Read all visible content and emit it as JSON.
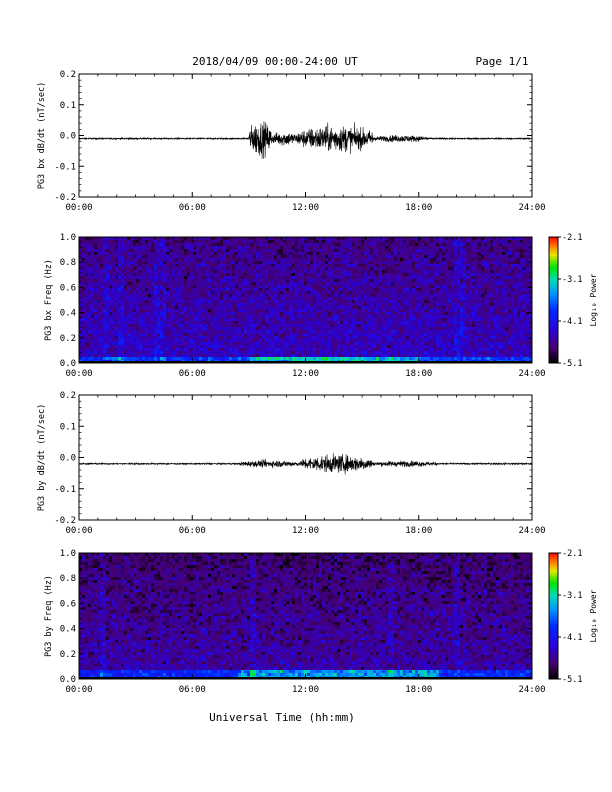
{
  "header": {
    "title": "2018/04/09  00:00-24:00 UT",
    "page": "Page 1/1"
  },
  "footer": {
    "xlabel": "Universal Time (hh:mm)"
  },
  "colorbar": {
    "label": "Log₁₀ Power",
    "ticks": [
      "-2.1",
      "-3.1",
      "-4.1",
      "-5.1"
    ],
    "range": [
      -5.1,
      -2.1
    ],
    "colormap": "rainbow-dark-to-red"
  },
  "chart_data": [
    {
      "id": "bx-ts",
      "type": "line",
      "title": "",
      "ylabel": "PG3 bx dB/dt (nT/sec)",
      "xlabel": "",
      "xlim": [
        0,
        24
      ],
      "ylim": [
        -0.2,
        0.2
      ],
      "x_ticks": [
        "00:00",
        "06:00",
        "12:00",
        "18:00",
        "24:00"
      ],
      "y_ticks": [
        "0.2",
        "0.1",
        "0.0",
        "-0.1",
        "-0.2"
      ],
      "baseline": -0.01,
      "activity": [
        {
          "start_hr": 9.0,
          "end_hr": 10.2,
          "amplitude": 0.06
        },
        {
          "start_hr": 10.2,
          "end_hr": 11.6,
          "amplitude": 0.025
        },
        {
          "start_hr": 11.6,
          "end_hr": 15.6,
          "amplitude": 0.045
        },
        {
          "start_hr": 15.6,
          "end_hr": 18.5,
          "amplitude": 0.012
        }
      ]
    },
    {
      "id": "bx-spec",
      "type": "heatmap",
      "title": "",
      "ylabel": "PG3 bx Freq (Hz)",
      "xlim": [
        0,
        24
      ],
      "ylim": [
        0.0,
        1.0
      ],
      "x_ticks": [
        "00:00",
        "06:00",
        "12:00",
        "18:00",
        "24:00"
      ],
      "y_ticks": [
        "1.0",
        "0.8",
        "0.6",
        "0.4",
        "0.2",
        "0.0"
      ],
      "z_range": [
        -5.1,
        -2.1
      ],
      "background_log_power": -4.4,
      "low_freq_band": {
        "max_hz": 0.05,
        "peak_log_power": -3.0,
        "peak_hr_range": [
          11.5,
          15.0
        ]
      },
      "vertical_streaks_hr": [
        1.5,
        2.3,
        4.2,
        4.5,
        20.0,
        20.4
      ]
    },
    {
      "id": "by-ts",
      "type": "line",
      "title": "",
      "ylabel": "PG3 by dB/dt (nT/sec)",
      "xlabel": "",
      "xlim": [
        0,
        24
      ],
      "ylim": [
        -0.2,
        0.2
      ],
      "x_ticks": [
        "00:00",
        "06:00",
        "12:00",
        "18:00",
        "24:00"
      ],
      "y_ticks": [
        "0.2",
        "0.1",
        "0.0",
        "-0.1",
        "-0.2"
      ],
      "baseline": -0.02,
      "activity": [
        {
          "start_hr": 8.5,
          "end_hr": 11.8,
          "amplitude": 0.012
        },
        {
          "start_hr": 11.8,
          "end_hr": 15.5,
          "amplitude": 0.03
        },
        {
          "start_hr": 15.5,
          "end_hr": 19.0,
          "amplitude": 0.01
        }
      ]
    },
    {
      "id": "by-spec",
      "type": "heatmap",
      "title": "",
      "ylabel": "PG3 by Freq (Hz)",
      "xlim": [
        0,
        24
      ],
      "ylim": [
        0.0,
        1.0
      ],
      "x_ticks": [
        "00:00",
        "06:00",
        "12:00",
        "18:00",
        "24:00"
      ],
      "y_ticks": [
        "1.0",
        "0.8",
        "0.6",
        "0.4",
        "0.2",
        "0.0"
      ],
      "z_range": [
        -5.1,
        -2.1
      ],
      "background_log_power": -4.5,
      "low_freq_band": {
        "max_hz": 0.06,
        "peak_log_power": -3.3,
        "peak_hr_range": [
          11.0,
          16.0
        ]
      },
      "vertical_streaks_hr": [
        1.3,
        9.2,
        16.5,
        20.0
      ]
    }
  ]
}
